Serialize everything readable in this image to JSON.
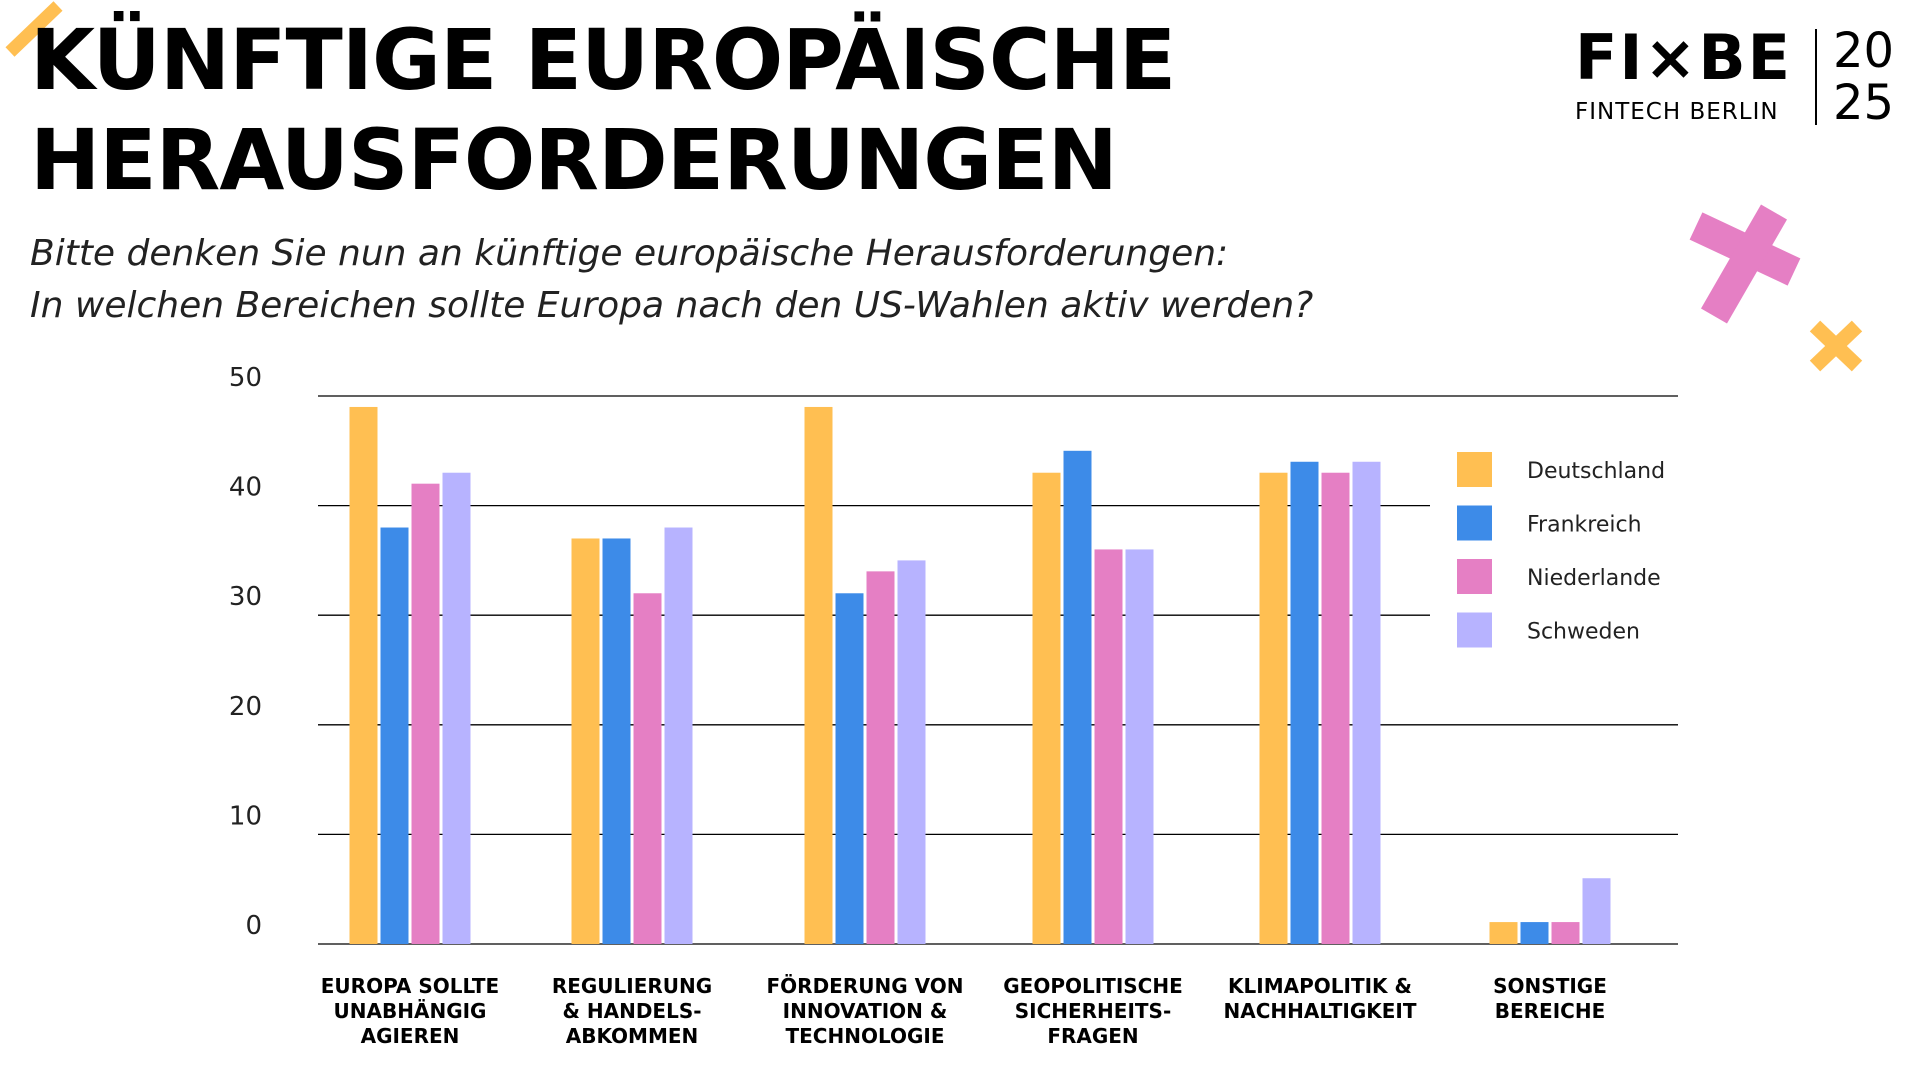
{
  "header": {
    "title_line1": "KÜNFTIGE EUROPÄISCHE",
    "title_line2": "HERAUSFORDERUNGEN",
    "subtitle_line1": "Bitte denken Sie nun an künftige europäische Herausforderungen:",
    "subtitle_line2": "In welchen Bereichen sollte Europa nach den US-Wahlen aktiv werden?"
  },
  "logo": {
    "main": "FI×BE",
    "sub": "FINTECH BERLIN",
    "year_top": "20",
    "year_bottom": "25"
  },
  "colors": {
    "deutschland": "#ffbf52",
    "frankreich": "#3d8be8",
    "niederlande": "#e57fc4",
    "schweden": "#b7b3ff",
    "deco_pink": "#e57fc4",
    "deco_yellow": "#ffbf52"
  },
  "chart_data": {
    "type": "bar",
    "title": "",
    "xlabel": "",
    "ylabel": "",
    "ylim": [
      0,
      50
    ],
    "yticks": [
      0,
      10,
      20,
      30,
      40,
      50
    ],
    "grid": true,
    "legend_position": "right",
    "categories": [
      [
        "EUROPA SOLLTE",
        "UNABHÄNGIG",
        "AGIEREN"
      ],
      [
        "REGULIERUNG",
        "& HANDELS-",
        "ABKOMMEN"
      ],
      [
        "FÖRDERUNG VON",
        "INNOVATION &",
        "TECHNOLOGIE"
      ],
      [
        "GEOPOLITISCHE",
        "SICHERHEITS-",
        "FRAGEN"
      ],
      [
        "KLIMAPOLITIK &",
        "NACHHALTIGKEIT"
      ],
      [
        "SONSTIGE",
        "BEREICHE"
      ]
    ],
    "series": [
      {
        "name": "Deutschland",
        "color": "#ffbf52",
        "values": [
          49,
          37,
          49,
          43,
          43,
          2
        ]
      },
      {
        "name": "Frankreich",
        "color": "#3d8be8",
        "values": [
          38,
          37,
          32,
          45,
          44,
          2
        ]
      },
      {
        "name": "Niederlande",
        "color": "#e57fc4",
        "values": [
          42,
          32,
          34,
          36,
          43,
          2
        ]
      },
      {
        "name": "Schweden",
        "color": "#b7b3ff",
        "values": [
          43,
          38,
          35,
          36,
          44,
          6
        ]
      }
    ]
  }
}
